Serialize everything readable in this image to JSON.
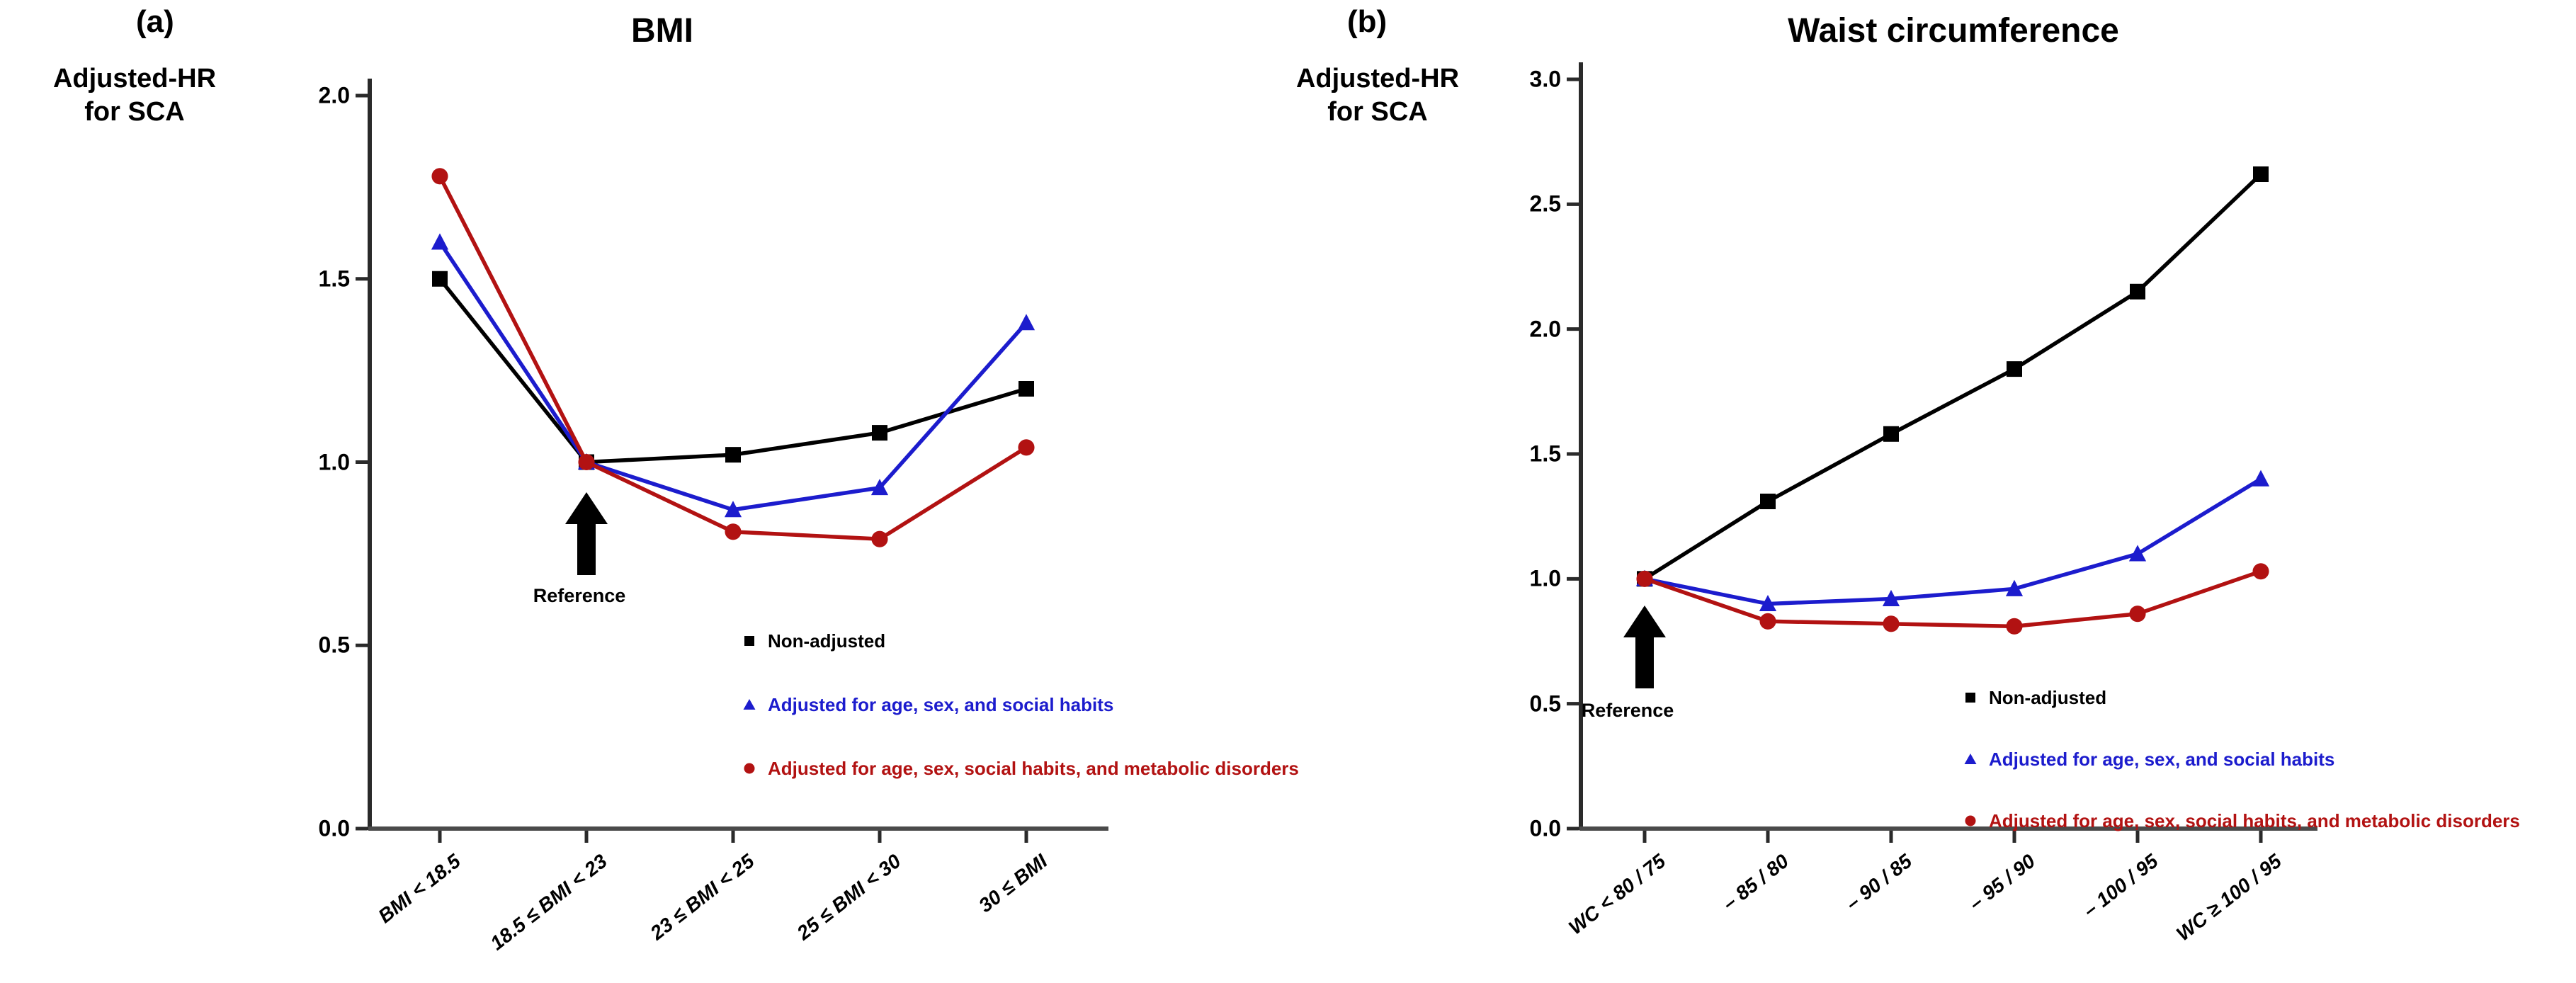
{
  "figure": {
    "panels": [
      {
        "panel_tag": "(a)",
        "title": "BMI",
        "y_axis_label_line1": "Adjusted-HR",
        "y_axis_label_line2": "for SCA",
        "reference_label": "Reference"
      },
      {
        "panel_tag": "(b)",
        "title": "Waist circumference",
        "y_axis_label_line1": "Adjusted-HR",
        "y_axis_label_line2": "for SCA",
        "reference_label": "Reference"
      }
    ]
  },
  "chart_data": [
    {
      "type": "line",
      "title": "BMI",
      "ylabel": "Adjusted-HR for SCA",
      "categories": [
        "BMI < 18.5",
        "18.5 ≤ BMI < 23",
        "23 ≤ BMI < 25",
        "25 ≤ BMI < 30",
        "30 ≤ BMI"
      ],
      "series": [
        {
          "name": "Non-adjusted",
          "marker": "square",
          "color": "#000000",
          "values": [
            1.5,
            1.0,
            1.02,
            1.08,
            1.2
          ]
        },
        {
          "name": "Adjusted for age, sex, and social habits",
          "marker": "triangle",
          "color": "#1c1ccd",
          "values": [
            1.6,
            1.0,
            0.87,
            0.93,
            1.38
          ]
        },
        {
          "name": "Adjusted for age, sex, social habits, and metabolic disorders",
          "marker": "circle",
          "color": "#b21212",
          "values": [
            1.78,
            1.0,
            0.81,
            0.79,
            1.04
          ]
        }
      ],
      "ylim": [
        0.0,
        2.0
      ],
      "ytick_labels": [
        "2.0",
        "1.5",
        "1.0",
        "0.5",
        "0.0"
      ],
      "reference_category_index": 1,
      "annotation": "Reference",
      "legend_position": "inside-bottom-right",
      "grid": false
    },
    {
      "type": "line",
      "title": "Waist circumference",
      "ylabel": "Adjusted-HR for SCA",
      "categories": [
        "WC < 80 / 75",
        "– 85 / 80",
        "– 90 / 85",
        "– 95 / 90",
        "– 100 / 95",
        "WC ≥ 100 / 95"
      ],
      "series": [
        {
          "name": "Non-adjusted",
          "marker": "square",
          "color": "#000000",
          "values": [
            1.0,
            1.31,
            1.58,
            1.84,
            2.15,
            2.62
          ]
        },
        {
          "name": "Adjusted for age, sex, and social habits",
          "marker": "triangle",
          "color": "#1c1ccd",
          "values": [
            1.0,
            0.9,
            0.92,
            0.96,
            1.1,
            1.4
          ]
        },
        {
          "name": "Adjusted for age, sex, social habits, and metabolic disorders",
          "marker": "circle",
          "color": "#b21212",
          "values": [
            1.0,
            0.83,
            0.82,
            0.81,
            0.86,
            1.03
          ]
        }
      ],
      "ylim": [
        0.0,
        3.0
      ],
      "ytick_labels": [
        "3.0",
        "2.5",
        "2.0",
        "1.5",
        "1.0",
        "0.5",
        "0.0"
      ],
      "reference_category_index": 0,
      "annotation": "Reference",
      "legend_position": "inside-bottom-right",
      "grid": false
    }
  ]
}
